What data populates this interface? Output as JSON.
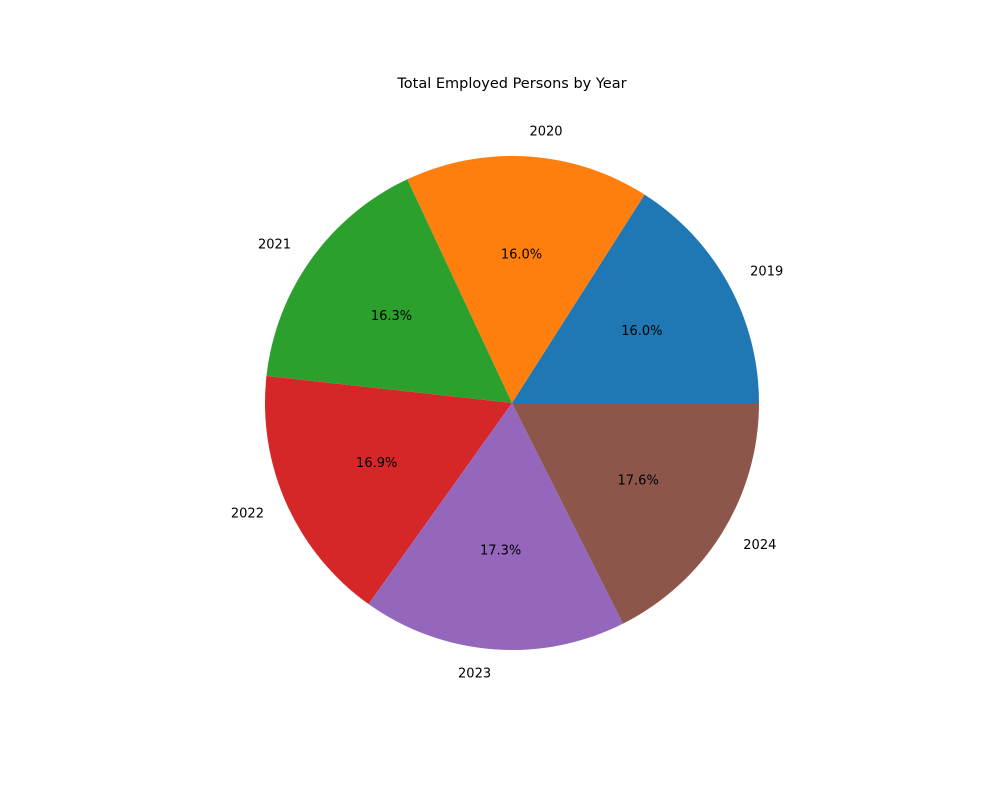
{
  "chart_data": {
    "type": "pie",
    "title": "Total Employed Persons by Year",
    "categories": [
      "2019",
      "2020",
      "2021",
      "2022",
      "2023",
      "2024"
    ],
    "values": [
      16.0,
      16.0,
      16.3,
      16.9,
      17.3,
      17.6
    ],
    "percent_labels": [
      "16.0%",
      "16.0%",
      "16.3%",
      "16.9%",
      "17.3%",
      "17.6%"
    ],
    "colors": [
      "#1f77b4",
      "#ff7f0e",
      "#2ca02c",
      "#d62728",
      "#9467bd",
      "#8c564b"
    ],
    "start_angle_deg": 0,
    "direction": "counterclockwise",
    "legend": "none"
  }
}
